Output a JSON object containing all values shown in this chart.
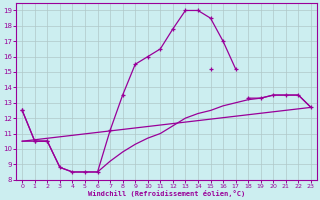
{
  "xlabel": "Windchill (Refroidissement éolien,°C)",
  "xlim": [
    -0.5,
    23.5
  ],
  "ylim": [
    8,
    19.5
  ],
  "xticks": [
    0,
    1,
    2,
    3,
    4,
    5,
    6,
    7,
    8,
    9,
    10,
    11,
    12,
    13,
    14,
    15,
    16,
    17,
    18,
    19,
    20,
    21,
    22,
    23
  ],
  "yticks": [
    8,
    9,
    10,
    11,
    12,
    13,
    14,
    15,
    16,
    17,
    18,
    19
  ],
  "background_color": "#cceef0",
  "line_color": "#990099",
  "grid_color": "#b0c8c8",
  "lines": [
    {
      "x": [
        0,
        1,
        2,
        3,
        4,
        5,
        6,
        7,
        8,
        9,
        10,
        11,
        12,
        13,
        14,
        15,
        16,
        17,
        18,
        19,
        20,
        21,
        22,
        23
      ],
      "y": [
        12.5,
        10.5,
        10.5,
        8.8,
        8.5,
        8.5,
        8.5,
        11.2,
        13.5,
        15.5,
        16.0,
        16.5,
        17.8,
        19.0,
        19.0,
        18.5,
        17.0,
        15.2,
        null,
        null,
        null,
        null,
        null,
        null
      ],
      "marker": true
    },
    {
      "x": [
        0,
        1,
        2,
        3,
        4,
        5,
        6,
        7,
        8,
        9,
        10,
        11,
        12,
        13,
        14,
        15,
        16,
        17,
        18,
        19,
        20,
        21,
        22,
        23
      ],
      "y": [
        12.5,
        10.5,
        10.5,
        null,
        null,
        null,
        null,
        null,
        null,
        null,
        null,
        null,
        null,
        null,
        null,
        15.2,
        null,
        null,
        13.3,
        13.3,
        13.5,
        13.5,
        13.5,
        12.7
      ],
      "marker": true
    },
    {
      "x": [
        0,
        1,
        2,
        3,
        4,
        5,
        6,
        7,
        8,
        9,
        10,
        11,
        12,
        13,
        14,
        15,
        16,
        17,
        18,
        19,
        20,
        21,
        22,
        23
      ],
      "y": [
        10.5,
        10.5,
        10.5,
        8.8,
        8.5,
        8.5,
        8.5,
        9.2,
        9.8,
        10.3,
        10.7,
        11.0,
        11.5,
        12.0,
        12.3,
        12.5,
        12.8,
        13.0,
        13.2,
        13.3,
        13.5,
        13.5,
        13.5,
        12.7
      ],
      "marker": false
    },
    {
      "x": [
        0,
        23
      ],
      "y": [
        10.5,
        12.7
      ],
      "marker": false
    }
  ]
}
